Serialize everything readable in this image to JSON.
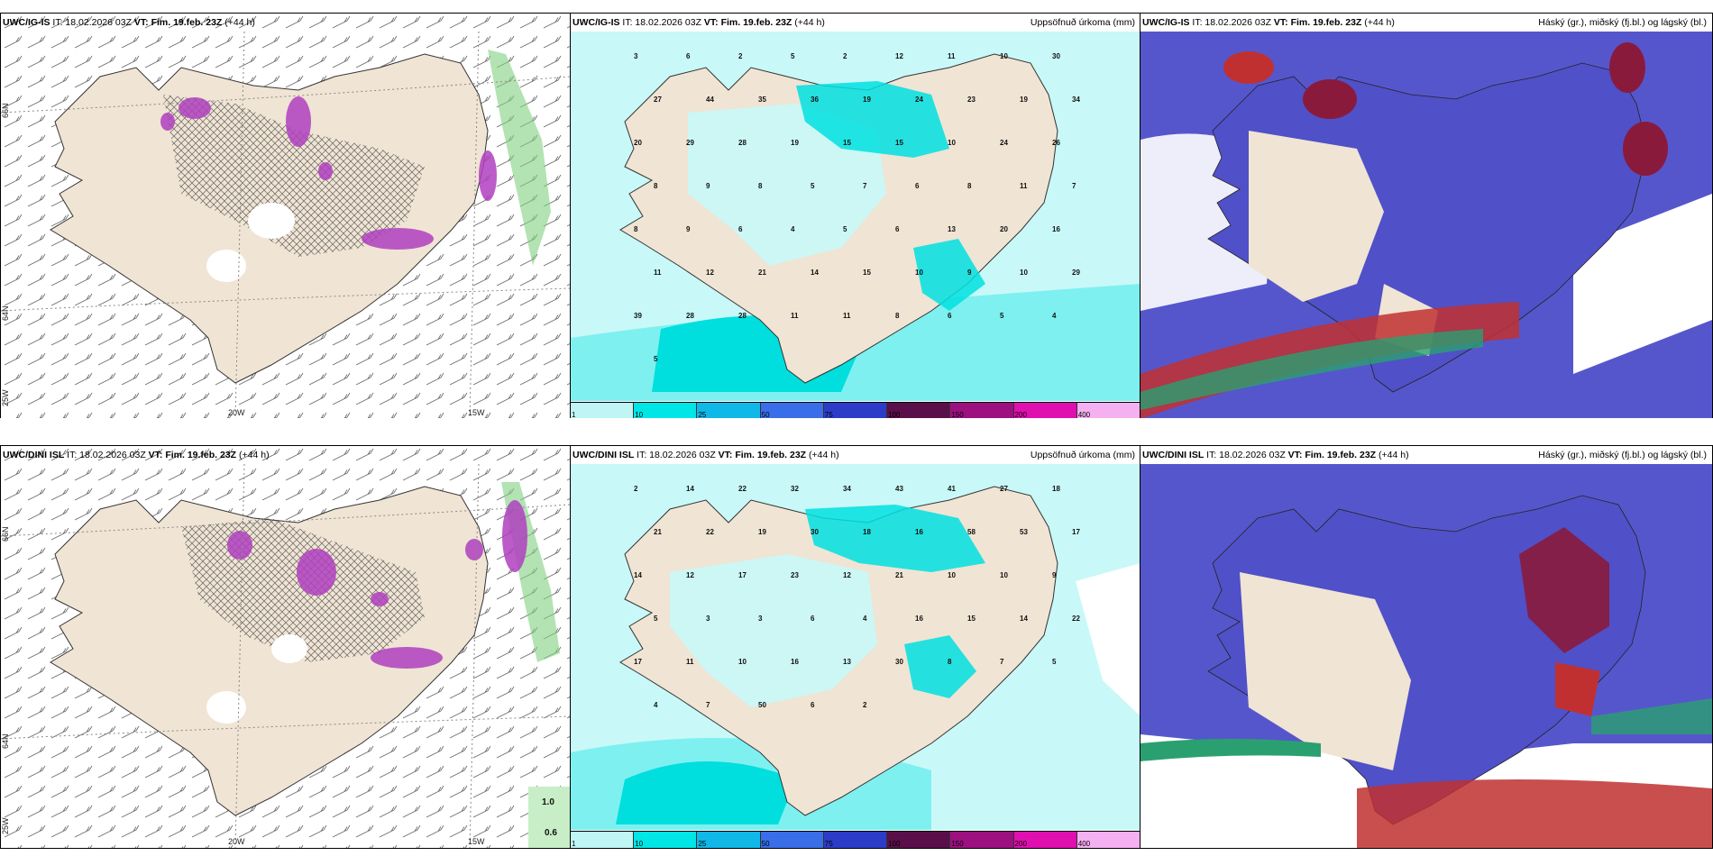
{
  "panels": [
    {
      "id": "r1c1",
      "model": "UWC/IG-IS",
      "info": " IT: 18.02.2026 03Z ",
      "vt": "VT: Fim. 19.feb. 23Z",
      "lead": " (+44 h)",
      "right": ""
    },
    {
      "id": "r1c2",
      "model": "UWC/IG-IS",
      "info": " IT: 18.02.2026 03Z ",
      "vt": "VT: Fim. 19.feb. 23Z",
      "lead": " (+44 h)",
      "right": "Uppsöfnuð úrkoma (mm)"
    },
    {
      "id": "r1c3",
      "model": "UWC/IG-IS",
      "info": " IT: 18.02.2026 03Z ",
      "vt": "VT: Fim. 19.feb. 23Z",
      "lead": " (+44 h)",
      "right": "Háský (gr.), miðský (fj.bl.) og lágský (bl.)"
    },
    {
      "id": "r2c1",
      "model": "UWC/DINI ISL",
      "info": " IT: 18.02.2026 03Z ",
      "vt": "VT: Fim. 19.feb. 23Z",
      "lead": " (+44 h)",
      "right": ""
    },
    {
      "id": "r2c2",
      "model": "UWC/DINI ISL",
      "info": " IT: 18.02.2026 03Z ",
      "vt": "VT: Fim. 19.feb. 23Z",
      "lead": " (+44 h)",
      "right": "Uppsöfnuð úrkoma (mm)"
    },
    {
      "id": "r2c3",
      "model": "UWC/DINI ISL",
      "info": " IT: 18.02.2026 03Z ",
      "vt": "VT: Fim. 19.feb. 23Z",
      "lead": " (+44 h)",
      "right": "Háský (gr.), miðský (fj.bl.) og lágský (bl.)"
    }
  ],
  "axis_labels": {
    "lat_66": "66N",
    "lat_64": "64N",
    "lon_25": "25W",
    "lon_20": "20W",
    "lon_15": "15W"
  },
  "legend_small": {
    "top": "1.0",
    "bottom": "0.6"
  },
  "colorbar": {
    "ticks": [
      "1",
      "10",
      "25",
      "50",
      "75",
      "100",
      "150",
      "200",
      "400"
    ],
    "colors": [
      "#bff5f5",
      "#00e5e5",
      "#10b8e8",
      "#3a6ee8",
      "#2c3cc8",
      "#5a0f4a",
      "#9c1080",
      "#e010b0",
      "#f4b0f0"
    ]
  },
  "precip_top": [
    "3",
    "6",
    "2",
    "5",
    "2",
    "12",
    "11",
    "10",
    "30",
    "27",
    "44",
    "35",
    "36",
    "19",
    "24",
    "23",
    "19",
    "34",
    "20",
    "29",
    "28",
    "19",
    "15",
    "15",
    "10",
    "24",
    "26",
    "8",
    "9",
    "8",
    "5",
    "7",
    "6",
    "8",
    "11",
    "7",
    "8",
    "9",
    "6",
    "4",
    "5",
    "6",
    "13",
    "20",
    "16",
    "11",
    "12",
    "21",
    "14",
    "15",
    "10",
    "9",
    "10",
    "29",
    "39",
    "28",
    "28",
    "11",
    "11",
    "8",
    "6",
    "5",
    "4",
    "5"
  ],
  "precip_bottom": [
    "2",
    "14",
    "22",
    "32",
    "34",
    "43",
    "41",
    "27",
    "18",
    "21",
    "22",
    "19",
    "30",
    "18",
    "16",
    "58",
    "53",
    "17",
    "14",
    "12",
    "17",
    "23",
    "12",
    "21",
    "10",
    "10",
    "9",
    "5",
    "3",
    "3",
    "6",
    "4",
    "16",
    "15",
    "14",
    "22",
    "17",
    "11",
    "10",
    "16",
    "13",
    "30",
    "8",
    "7",
    "5",
    "4",
    "7",
    "50",
    "6",
    "2"
  ],
  "colors": {
    "land": "#f0e4d4",
    "sea_precip": "#c8f8f8",
    "cloud_high": "#5656cc",
    "cloud_mid": "#8a1a3c",
    "cloud_low": "#2aa070",
    "snow": "#a040c0",
    "coast": "#222222"
  }
}
